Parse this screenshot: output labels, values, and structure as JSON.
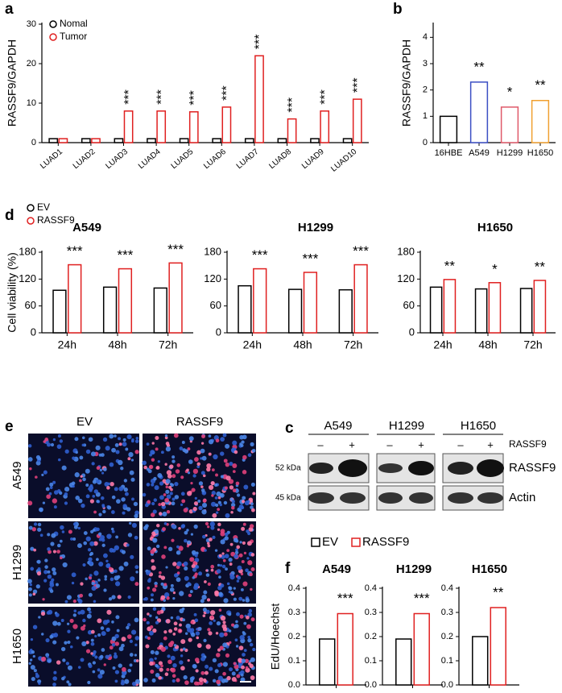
{
  "chart_data": [
    {
      "type": "bar",
      "panel": "a",
      "ylabel": "RASSF9/GAPDH",
      "categories": [
        "LUAD1",
        "LUAD2",
        "LUAD3",
        "LUAD4",
        "LUAD5",
        "LUAD6",
        "LUAD7",
        "LUAD8",
        "LUAD9",
        "LUAD10"
      ],
      "series": [
        {
          "name": "Nomal",
          "color": "#000000",
          "values": [
            1,
            1,
            1,
            1,
            1,
            1,
            1,
            1,
            1,
            1
          ]
        },
        {
          "name": "Tumor",
          "color": "#e02020",
          "values": [
            1,
            1,
            8,
            8,
            7.8,
            9,
            22,
            6,
            8,
            11
          ]
        }
      ],
      "annotations": [
        null,
        null,
        "***",
        "***",
        "***",
        "***",
        "***",
        "***",
        "***",
        "***"
      ],
      "ylim": [
        0,
        30
      ],
      "yticks": [
        0,
        10,
        20,
        30
      ]
    },
    {
      "type": "bar",
      "panel": "b",
      "ylabel": "RASSF9/GAPDH",
      "categories": [
        "16HBE",
        "A549",
        "H1299",
        "H1650"
      ],
      "values": [
        1,
        2.3,
        1.35,
        1.6
      ],
      "colors": [
        "#000000",
        "#3b4fc4",
        "#e05a6a",
        "#f0a030"
      ],
      "annotations": [
        null,
        "**",
        "*",
        "**"
      ],
      "ylim": [
        0,
        4.5
      ],
      "yticks": [
        0,
        1,
        2,
        3,
        4
      ]
    },
    {
      "type": "bar",
      "panel": "d",
      "title": "A549",
      "ylabel": "Cell viability (%)",
      "categories": [
        "24h",
        "48h",
        "72h"
      ],
      "series": [
        {
          "name": "EV",
          "color": "#000000",
          "values": [
            95,
            102,
            100
          ]
        },
        {
          "name": "RASSF9",
          "color": "#e02020",
          "values": [
            152,
            143,
            156
          ]
        }
      ],
      "annotations": [
        "***",
        "***",
        "***"
      ],
      "ylim": [
        0,
        180
      ],
      "yticks": [
        0,
        60,
        120,
        180
      ]
    },
    {
      "type": "bar",
      "title": "H1299",
      "categories": [
        "24h",
        "48h",
        "72h"
      ],
      "series": [
        {
          "color": "#000000",
          "values": [
            105,
            97,
            96
          ]
        },
        {
          "color": "#e02020",
          "values": [
            143,
            135,
            152
          ]
        }
      ],
      "annotations": [
        "***",
        "***",
        "***"
      ],
      "ylim": [
        0,
        180
      ],
      "yticks": [
        0,
        60,
        120,
        180
      ]
    },
    {
      "type": "bar",
      "title": "H1650",
      "categories": [
        "24h",
        "48h",
        "72h"
      ],
      "series": [
        {
          "color": "#000000",
          "values": [
            102,
            98,
            99
          ]
        },
        {
          "color": "#e02020",
          "values": [
            119,
            112,
            117
          ]
        }
      ],
      "annotations": [
        "**",
        "*",
        "**"
      ],
      "ylim": [
        0,
        180
      ],
      "yticks": [
        0,
        60,
        120,
        180
      ]
    },
    {
      "type": "bar",
      "panel": "f",
      "title": "A549",
      "ylabel": "EdU/Hoechst",
      "series": [
        {
          "name": "EV",
          "color": "#000000",
          "values": [
            0.19
          ]
        },
        {
          "name": "RASSF9",
          "color": "#e02020",
          "values": [
            0.295
          ]
        }
      ],
      "annotations": [
        "***"
      ],
      "ylim": [
        0,
        0.4
      ],
      "yticks": [
        {
          "value": 0,
          "label": "0.0"
        },
        0.1,
        0.2,
        0.3,
        0.4
      ]
    },
    {
      "type": "bar",
      "title": "H1299",
      "series": [
        {
          "color": "#000000",
          "values": [
            0.19
          ]
        },
        {
          "color": "#e02020",
          "values": [
            0.295
          ]
        }
      ],
      "annotations": [
        "***"
      ],
      "ylim": [
        0,
        0.4
      ],
      "yticks": [
        {
          "value": 0,
          "label": "0.0"
        },
        0.1,
        0.2,
        0.3,
        0.4
      ]
    },
    {
      "type": "bar",
      "title": "H1650",
      "series": [
        {
          "color": "#000000",
          "values": [
            0.2
          ]
        },
        {
          "color": "#e02020",
          "values": [
            0.32
          ]
        }
      ],
      "annotations": [
        "**"
      ],
      "ylim": [
        0,
        0.4
      ],
      "yticks": [
        {
          "value": 0,
          "label": "0.0"
        },
        0.1,
        0.2,
        0.3,
        0.4
      ]
    }
  ],
  "panel_e": {
    "panel": "e",
    "columns": [
      "EV",
      "RASSF9"
    ],
    "rows": [
      "A549",
      "H1299",
      "H1650"
    ]
  },
  "panel_c": {
    "panel": "c",
    "cell_lines": [
      "A549",
      "H1299",
      "H1650"
    ],
    "lanes": [
      "–",
      "+",
      "–",
      "+",
      "–",
      "+"
    ],
    "treatment": "RASSF9",
    "markers": [
      "52 kDa",
      "45 kDa"
    ],
    "proteins": [
      "RASSF9",
      "Actin"
    ]
  }
}
